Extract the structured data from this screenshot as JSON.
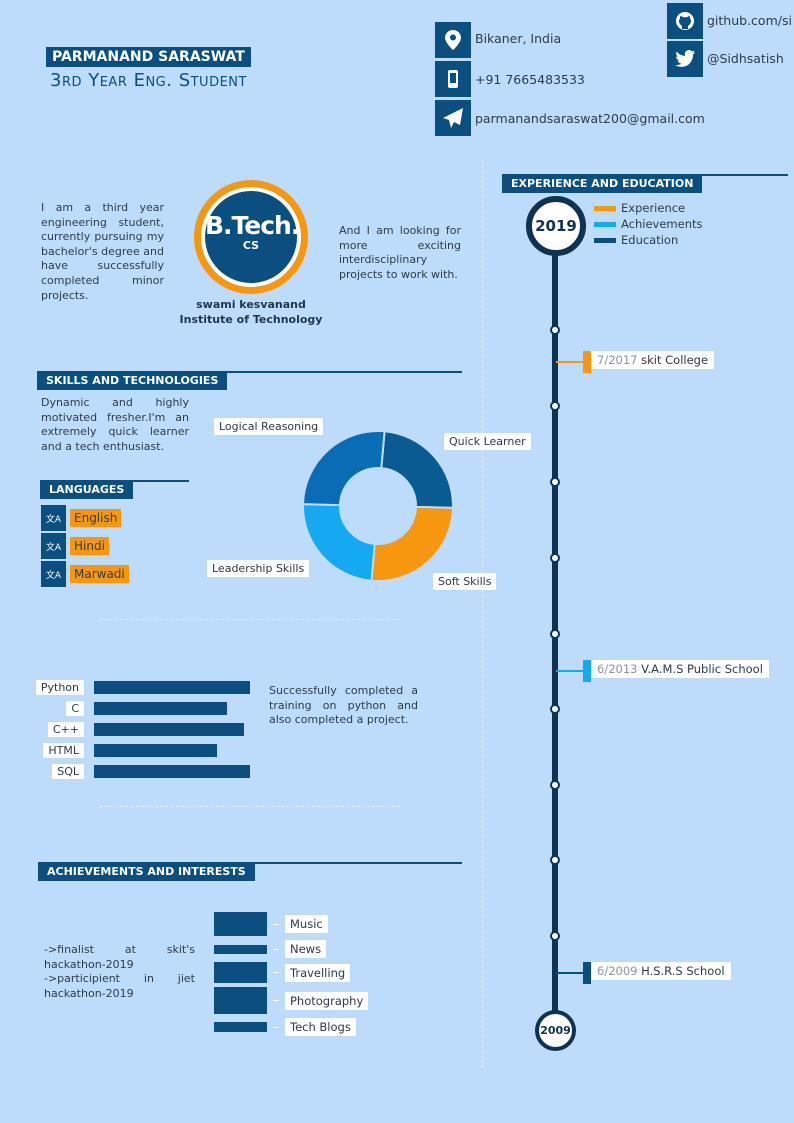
{
  "header": {
    "name": "PARMANAND SARASWAT",
    "title": "3rd Year Eng. Student"
  },
  "contact": [
    {
      "icon": "location-icon",
      "text": "Bikaner, India"
    },
    {
      "icon": "phone-icon",
      "text": "+91 7665483533"
    },
    {
      "icon": "send-icon",
      "text": "parmanandsaraswat200@gmail.com"
    }
  ],
  "social": [
    {
      "icon": "github-icon",
      "text": "github.com/si"
    },
    {
      "icon": "twitter-icon",
      "text": "@Sidhsatish"
    }
  ],
  "about": {
    "left": "I am a third year engineering student, currently pursuing my bachelor's degree and have successfully completed minor projects.",
    "right": "And I am looking for more exciting interdisciplinary projects to work with.",
    "badge_main": "B.Tech.",
    "badge_sub": "CS",
    "college_1": "swami kesvanand",
    "college_2": "Institute of Technology"
  },
  "skills": {
    "heading": "SKILLS AND TECHNOLOGIES",
    "text": "Dynamic and highly motivated fresher.I'm an extremely quick learner and a tech enthusiast.",
    "chart_data": {
      "type": "pie",
      "donut": true,
      "categories": [
        "Quick Learner",
        "Soft Skills",
        "Leadership Skills",
        "Logical Reasoning"
      ],
      "values": [
        24,
        26,
        24,
        26
      ],
      "colors": [
        "#0b5b93",
        "#f7960f",
        "#15a9f1",
        "#0a6cb4"
      ]
    }
  },
  "languages": {
    "heading": "LANGUAGES",
    "icon": "translate-icon",
    "items": [
      "English",
      "Hindi",
      "Marwadi"
    ]
  },
  "programming": {
    "chart_data": {
      "type": "bar",
      "orientation": "horizontal",
      "categories": [
        "Python",
        "C",
        "C++",
        "HTML",
        "SQL"
      ],
      "values": [
        100,
        85,
        96,
        79,
        100
      ]
    },
    "text": "Successfully completed a training on python and also completed a project."
  },
  "achievements": {
    "heading": "ACHIEVEMENTS AND INTERESTS",
    "lines": [
      "->finalist at skit's hackathon-2019",
      "->participient in jiet hackathon-2019"
    ],
    "interests": {
      "type": "bar",
      "categories": [
        "Music",
        "News",
        "Travelling",
        "Photography",
        "Tech Blogs"
      ],
      "values": [
        24,
        9,
        21,
        27,
        10
      ]
    }
  },
  "timeline": {
    "heading": "EXPERIENCE AND EDUCATION",
    "legend": [
      {
        "label": "Experience",
        "color": "#f7960f"
      },
      {
        "label": "Achievements",
        "color": "#15a9f1"
      },
      {
        "label": "Education",
        "color": "#0b4f80"
      }
    ],
    "start": "2019",
    "end": "2009",
    "entries": [
      {
        "date": "7/2017",
        "label": "skit College",
        "color": "#f7960f"
      },
      {
        "date": "6/2013",
        "label": "V.A.M.S Public School",
        "color": "#15a9f1"
      },
      {
        "date": "6/2009",
        "label": "H.S.R.S School",
        "color": "#0b4f80"
      }
    ]
  }
}
